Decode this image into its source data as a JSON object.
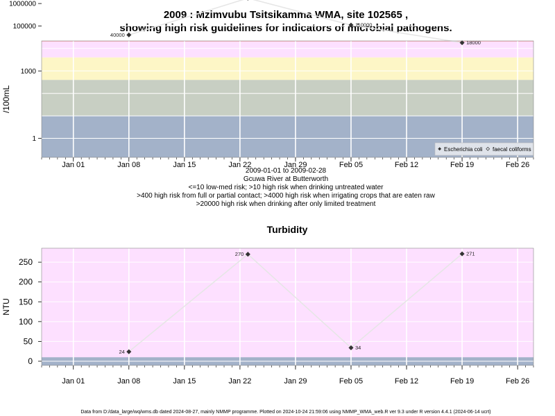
{
  "title_line1": "2009 : Mzimvubu Tsitsikamma WMA, site 102565 ,",
  "title_line2": "showing high risk guidelines for indicators of microbial pathogens.",
  "chart1_sub": [
    "2009-01-01 to 2009-02-28",
    "Gcuwa River at Butterworth",
    "<=10 low-med risk; >10 high risk when drinking untreated water",
    ">400 high risk from full or partial contact; >4000 high risk when irrigating crops that are eaten raw",
    ">20000 high risk when drinking after only limited treatment"
  ],
  "chart2_title": "Turbidity",
  "footer": "Data from D:/data_large/wq/wms.db dated 2024-08-27, mainly NMMP programme. Plotted on 2024-10-24 21:59:06 using NMMP_WMA_web.R ver 9.3 under R version 4.4.1 (2024-06-14 ucrt)",
  "colors": {
    "panel1_bands": [
      "#a3b2c9",
      "#c8cfc3",
      "#fdf6c6",
      "#fde0ff",
      "#ffb9c4"
    ],
    "panel2_bg": "#fde0ff",
    "panel2_low_band": "#a3b2c9",
    "series_line": "#e6e6e6",
    "point": "#333333"
  },
  "chart_data": [
    {
      "type": "line",
      "ylabel": "/100mL",
      "yscale": "log",
      "yticks": [
        "1",
        "1000",
        "100000",
        "1000000"
      ],
      "x_tick_labels": [
        "Jan 01",
        "Jan 08",
        "Jan 15",
        "Jan 22",
        "Jan 29",
        "Feb 05",
        "Feb 12",
        "Feb 19",
        "Feb 26"
      ],
      "legend": [
        "Escherichia coli",
        "faecal coliforms"
      ],
      "legend_position": "bottom-right",
      "series": [
        {
          "name": "Escherichia coli",
          "x": [
            "2009-01-08",
            "2009-01-23",
            "2009-02-05",
            "2009-02-19"
          ],
          "values": [
            40000,
            1733000,
            110000,
            18000
          ],
          "labels": [
            "40000",
            "1733000",
            "110000",
            "18000"
          ]
        }
      ]
    },
    {
      "type": "line",
      "title": "Turbidity",
      "ylabel": "NTU",
      "yticks": [
        "0",
        "50",
        "100",
        "150",
        "200",
        "250"
      ],
      "x_tick_labels": [
        "Jan 01",
        "Jan 08",
        "Jan 15",
        "Jan 22",
        "Jan 29",
        "Feb 05",
        "Feb 12",
        "Feb 19",
        "Feb 26"
      ],
      "series": [
        {
          "x": [
            "2009-01-08",
            "2009-01-23",
            "2009-02-05",
            "2009-02-19"
          ],
          "values": [
            24,
            270,
            34,
            271
          ],
          "labels": [
            "24",
            "270",
            "34",
            "271"
          ]
        }
      ]
    }
  ]
}
